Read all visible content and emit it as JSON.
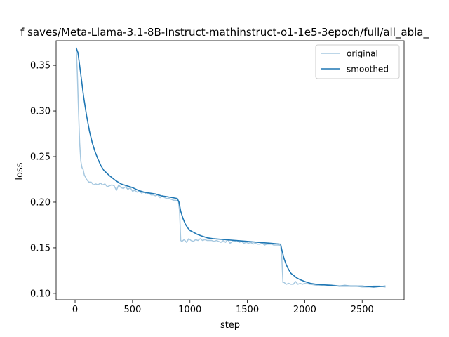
{
  "chart_data": {
    "type": "line",
    "title": "f saves/Meta-Llama-3.1-8B-Instruct-mathinstruct-o1-1e5-3epoch/full/all_abla_",
    "xlabel": "step",
    "ylabel": "loss",
    "xlim": [
      -165,
      2865
    ],
    "ylim": [
      0.093,
      0.377
    ],
    "xticks": [
      0,
      500,
      1000,
      1500,
      2000,
      2500
    ],
    "yticks": [
      0.1,
      0.15,
      0.2,
      0.25,
      0.3,
      0.35
    ],
    "ytick_labels": [
      "0.10",
      "0.15",
      "0.20",
      "0.25",
      "0.30",
      "0.35"
    ],
    "legend": {
      "position": "top-right"
    },
    "grid": false,
    "series": [
      {
        "name": "original",
        "color": "#a6c8e0",
        "x": [
          10,
          20,
          30,
          40,
          50,
          60,
          70,
          80,
          100,
          120,
          140,
          160,
          180,
          200,
          220,
          240,
          260,
          280,
          300,
          320,
          340,
          360,
          380,
          400,
          420,
          440,
          460,
          480,
          500,
          520,
          540,
          560,
          580,
          600,
          620,
          640,
          660,
          680,
          700,
          720,
          740,
          760,
          780,
          800,
          820,
          840,
          860,
          880,
          900,
          910,
          920,
          930,
          950,
          970,
          990,
          1010,
          1030,
          1050,
          1070,
          1090,
          1110,
          1130,
          1150,
          1170,
          1190,
          1210,
          1230,
          1250,
          1270,
          1290,
          1310,
          1330,
          1350,
          1370,
          1390,
          1410,
          1430,
          1450,
          1470,
          1490,
          1510,
          1530,
          1550,
          1570,
          1590,
          1610,
          1630,
          1650,
          1670,
          1690,
          1710,
          1730,
          1750,
          1770,
          1790,
          1800,
          1810,
          1820,
          1840,
          1860,
          1880,
          1900,
          1920,
          1940,
          1960,
          1980,
          2000,
          2050,
          2100,
          2150,
          2200,
          2250,
          2300,
          2350,
          2400,
          2450,
          2500,
          2550,
          2600,
          2650,
          2700
        ],
        "y": [
          0.369,
          0.34,
          0.3,
          0.265,
          0.245,
          0.238,
          0.236,
          0.23,
          0.225,
          0.222,
          0.222,
          0.219,
          0.22,
          0.219,
          0.221,
          0.219,
          0.22,
          0.217,
          0.218,
          0.219,
          0.218,
          0.213,
          0.219,
          0.216,
          0.215,
          0.217,
          0.214,
          0.216,
          0.212,
          0.213,
          0.211,
          0.212,
          0.21,
          0.211,
          0.209,
          0.21,
          0.208,
          0.208,
          0.207,
          0.208,
          0.205,
          0.207,
          0.205,
          0.204,
          0.204,
          0.203,
          0.202,
          0.202,
          0.201,
          0.19,
          0.158,
          0.157,
          0.159,
          0.156,
          0.16,
          0.158,
          0.157,
          0.159,
          0.158,
          0.16,
          0.158,
          0.159,
          0.158,
          0.158,
          0.158,
          0.157,
          0.158,
          0.157,
          0.156,
          0.158,
          0.156,
          0.159,
          0.155,
          0.157,
          0.157,
          0.158,
          0.156,
          0.157,
          0.155,
          0.156,
          0.155,
          0.156,
          0.154,
          0.155,
          0.154,
          0.154,
          0.155,
          0.153,
          0.154,
          0.154,
          0.154,
          0.153,
          0.153,
          0.153,
          0.152,
          0.14,
          0.112,
          0.112,
          0.11,
          0.111,
          0.11,
          0.11,
          0.113,
          0.11,
          0.111,
          0.11,
          0.111,
          0.11,
          0.109,
          0.109,
          0.11,
          0.109,
          0.108,
          0.109,
          0.108,
          0.108,
          0.107,
          0.107,
          0.108,
          0.108,
          0.107
        ]
      },
      {
        "name": "smoothed",
        "color": "#1f77b4",
        "x": [
          10,
          25,
          50,
          75,
          100,
          125,
          150,
          175,
          200,
          225,
          250,
          300,
          350,
          400,
          450,
          500,
          550,
          600,
          650,
          700,
          750,
          800,
          850,
          890,
          905,
          920,
          940,
          960,
          980,
          1000,
          1030,
          1060,
          1100,
          1150,
          1200,
          1300,
          1400,
          1500,
          1600,
          1700,
          1790,
          1800,
          1820,
          1840,
          1860,
          1880,
          1900,
          1930,
          1960,
          2000,
          2050,
          2100,
          2200,
          2300,
          2400,
          2500,
          2600,
          2700
        ],
        "y": [
          0.369,
          0.364,
          0.34,
          0.315,
          0.295,
          0.278,
          0.265,
          0.255,
          0.247,
          0.24,
          0.235,
          0.229,
          0.224,
          0.22,
          0.218,
          0.216,
          0.213,
          0.211,
          0.21,
          0.209,
          0.207,
          0.206,
          0.205,
          0.204,
          0.2,
          0.19,
          0.182,
          0.176,
          0.172,
          0.169,
          0.167,
          0.165,
          0.163,
          0.161,
          0.16,
          0.159,
          0.158,
          0.157,
          0.156,
          0.155,
          0.154,
          0.148,
          0.138,
          0.131,
          0.126,
          0.122,
          0.12,
          0.117,
          0.115,
          0.113,
          0.111,
          0.11,
          0.109,
          0.108,
          0.108,
          0.108,
          0.107,
          0.108
        ]
      }
    ]
  }
}
